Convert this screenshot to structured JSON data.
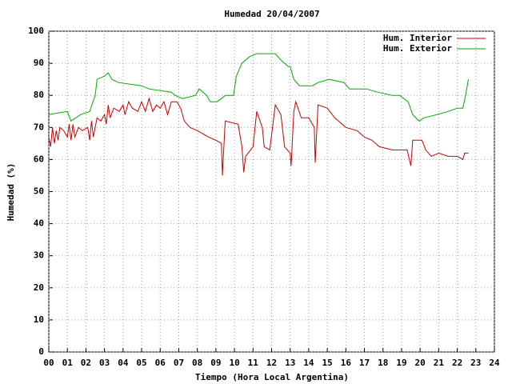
{
  "chart_data": {
    "type": "line",
    "title": "Humedad 20/04/2007",
    "x_label": "Tiempo (Hora Local Argentina)",
    "y_label": "Humedad (%)",
    "xlim": [
      0,
      24
    ],
    "ylim": [
      0,
      100
    ],
    "xticks": [
      {
        "value": 0,
        "label": "00"
      },
      {
        "value": 1,
        "label": "01"
      },
      {
        "value": 2,
        "label": "02"
      },
      {
        "value": 3,
        "label": "03"
      },
      {
        "value": 4,
        "label": "04"
      },
      {
        "value": 5,
        "label": "05"
      },
      {
        "value": 6,
        "label": "06"
      },
      {
        "value": 7,
        "label": "07"
      },
      {
        "value": 8,
        "label": "08"
      },
      {
        "value": 9,
        "label": "09"
      },
      10,
      11,
      12,
      13,
      14,
      15,
      16,
      17,
      18,
      19,
      20,
      21,
      22,
      23,
      24
    ],
    "yticks": [
      0,
      10,
      20,
      30,
      40,
      50,
      60,
      70,
      80,
      90,
      100
    ],
    "grid": true,
    "legend": "top-right",
    "series": [
      {
        "name": "Hum. Interior",
        "color": "#cc0000",
        "x": [
          0,
          0.1,
          0.2,
          0.3,
          0.4,
          0.5,
          0.6,
          0.8,
          1.0,
          1.1,
          1.2,
          1.3,
          1.4,
          1.6,
          1.8,
          2.1,
          2.2,
          2.3,
          2.4,
          2.6,
          2.8,
          3.0,
          3.1,
          3.2,
          3.3,
          3.5,
          3.8,
          4.0,
          4.1,
          4.3,
          4.5,
          4.8,
          5.0,
          5.2,
          5.4,
          5.6,
          5.8,
          6.0,
          6.2,
          6.4,
          6.6,
          6.9,
          7.1,
          7.3,
          7.6,
          8.0,
          8.6,
          9.0,
          9.3,
          9.35,
          9.5,
          10.2,
          10.4,
          10.5,
          10.6,
          11.0,
          11.2,
          11.5,
          11.6,
          11.9,
          12.2,
          12.5,
          12.7,
          13.0,
          13.05,
          13.2,
          13.3,
          13.6,
          14.0,
          14.3,
          14.35,
          14.5,
          15.0,
          15.4,
          15.6,
          16.0,
          16.6,
          17.0,
          17.4,
          17.8,
          18.5,
          19.3,
          19.5,
          19.6,
          20.1,
          20.3,
          20.6,
          21.0,
          21.5,
          22.0,
          22.3,
          22.4,
          22.6
        ],
        "values": [
          67,
          64,
          70,
          65,
          69,
          66,
          70,
          69,
          67,
          71,
          66,
          71,
          67,
          70,
          69,
          70,
          66,
          72,
          67,
          73,
          72,
          74,
          71,
          77,
          73,
          76,
          75,
          77,
          74,
          78,
          76,
          75,
          78,
          75,
          79,
          75,
          77,
          76,
          78,
          74,
          78,
          78,
          76,
          72,
          70,
          69,
          67,
          66,
          65,
          55,
          72,
          71,
          64,
          56,
          61,
          64,
          75,
          70,
          64,
          63,
          77,
          74,
          64,
          62,
          58,
          75,
          78,
          73,
          73,
          70,
          59,
          77,
          76,
          73,
          72,
          70,
          69,
          67,
          66,
          64,
          63,
          63,
          58,
          66,
          66,
          63,
          61,
          62,
          61,
          61,
          60,
          62,
          62
        ]
      },
      {
        "name": "Hum. Exterior",
        "color": "#00aa00",
        "x": [
          0,
          1.0,
          1.2,
          1.7,
          2.2,
          2.5,
          2.6,
          3.0,
          3.2,
          3.4,
          3.75,
          5.0,
          5.4,
          6.6,
          6.8,
          7.2,
          7.9,
          8.1,
          8.5,
          8.6,
          8.7,
          9.05,
          9.3,
          9.5,
          9.95,
          10.1,
          10.4,
          10.8,
          11.2,
          12.2,
          12.5,
          12.9,
          13.0,
          13.2,
          13.5,
          14.2,
          14.5,
          15.1,
          15.9,
          16.2,
          17.1,
          17.7,
          18.5,
          18.9,
          19.35,
          19.6,
          19.95,
          20.2,
          20.9,
          21.5,
          22.0,
          22.3,
          22.45,
          22.6
        ],
        "values": [
          74,
          75,
          72,
          74,
          75,
          80,
          85,
          86,
          87,
          85,
          84,
          83,
          82,
          81,
          80,
          79,
          80,
          82,
          80,
          79,
          78,
          78,
          79,
          80,
          80,
          86,
          90,
          92,
          93,
          93,
          91,
          89,
          89,
          85,
          83,
          83,
          84,
          85,
          84,
          82,
          82,
          81,
          80,
          80,
          78,
          74,
          72,
          73,
          74,
          75,
          76,
          76,
          80,
          85
        ]
      }
    ]
  }
}
